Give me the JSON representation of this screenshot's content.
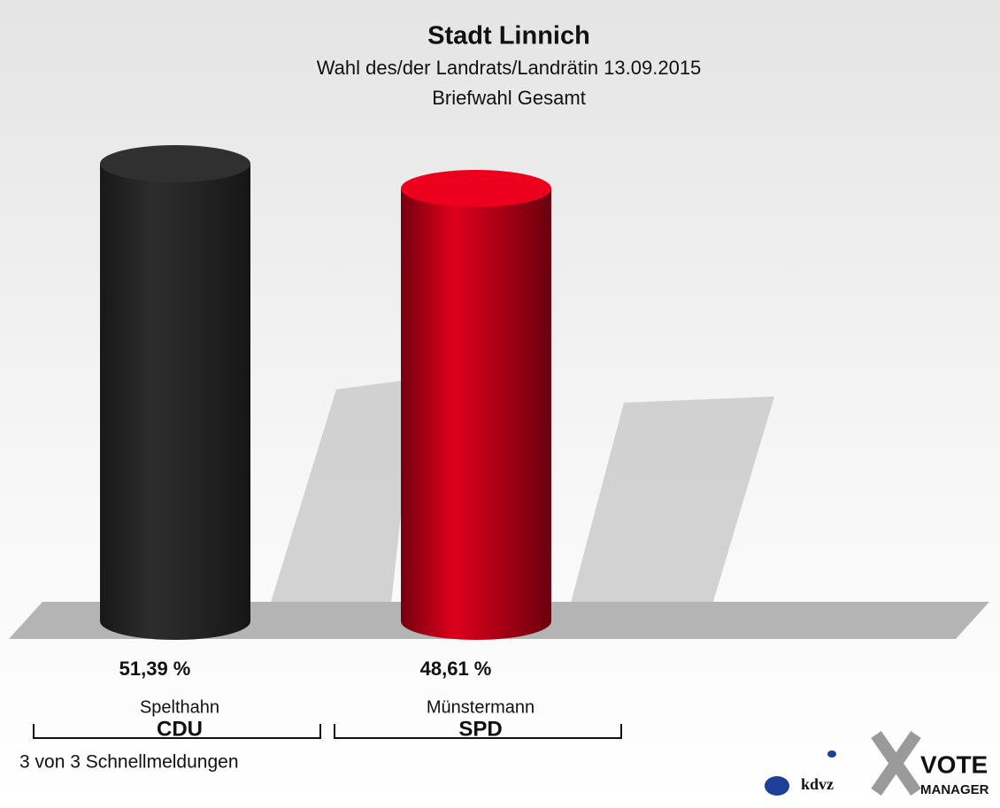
{
  "chart_data": {
    "type": "bar",
    "title": "Stadt Linnich",
    "subtitle": [
      "Wahl des/der Landrats/Landrätin 13.09.2015",
      "Briefwahl Gesamt"
    ],
    "categories": [
      "Spelthahn",
      "Münstermann"
    ],
    "parties": [
      "CDU",
      "SPD"
    ],
    "values": [
      51.39,
      48.61
    ],
    "value_labels": [
      "51,39 %",
      "48,61 %"
    ],
    "colors": [
      "#2b2b2b",
      "#d3001a"
    ],
    "footer": "3 von 3 Schnellmeldungen",
    "logo_texts": [
      "kdvz",
      "VOTE",
      "MANAGER"
    ]
  }
}
